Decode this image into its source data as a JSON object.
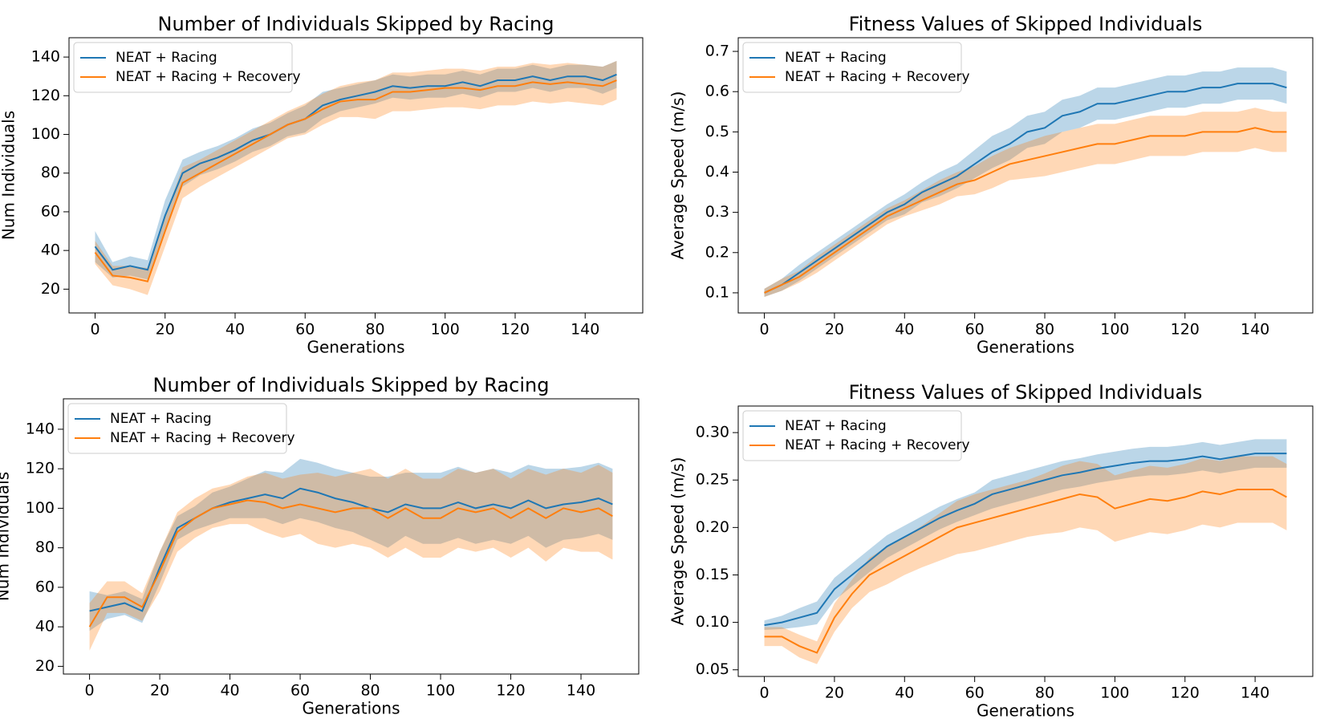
{
  "chart_data": [
    {
      "type": "line",
      "title": "Number of Individuals Skipped by Racing",
      "xlabel": "Generations",
      "ylabel": "Num Individuals",
      "x": [
        0,
        5,
        10,
        15,
        20,
        25,
        30,
        35,
        40,
        45,
        50,
        55,
        60,
        65,
        70,
        75,
        80,
        85,
        90,
        95,
        100,
        105,
        110,
        115,
        120,
        125,
        130,
        135,
        140,
        145,
        149
      ],
      "xlim": [
        -7.45,
        156.45
      ],
      "xticks": [
        0,
        20,
        40,
        60,
        80,
        100,
        120,
        140
      ],
      "ylim": [
        7.7,
        150
      ],
      "yticks": [
        20,
        40,
        60,
        80,
        100,
        120,
        140
      ],
      "legend": "upper left",
      "series": [
        {
          "name": "NEAT + Racing",
          "color": "#1f77b4",
          "values": [
            42,
            30,
            32,
            30,
            58,
            80,
            85,
            88,
            92,
            97,
            100,
            105,
            108,
            115,
            118,
            120,
            122,
            125,
            124,
            125,
            125,
            127,
            125,
            128,
            128,
            130,
            128,
            130,
            130,
            128,
            131
          ],
          "errors": [
            8,
            4,
            5,
            5,
            8,
            7,
            6,
            6,
            6,
            6,
            6,
            6,
            7,
            7,
            6,
            6,
            6,
            6,
            6,
            6,
            6,
            6,
            6,
            6,
            6,
            6,
            6,
            6,
            6,
            7,
            7
          ]
        },
        {
          "name": "NEAT + Racing + Recovery",
          "color": "#ff7f0e",
          "values": [
            39,
            27,
            26,
            24,
            50,
            75,
            80,
            85,
            90,
            95,
            100,
            105,
            108,
            113,
            117,
            118,
            118,
            122,
            122,
            123,
            124,
            124,
            123,
            125,
            125,
            127,
            126,
            127,
            126,
            125,
            128
          ],
          "errors": [
            6,
            5,
            6,
            7,
            8,
            8,
            7,
            7,
            7,
            7,
            7,
            7,
            8,
            8,
            8,
            9,
            10,
            10,
            10,
            10,
            10,
            10,
            10,
            10,
            10,
            10,
            10,
            10,
            10,
            10,
            10
          ]
        }
      ]
    },
    {
      "type": "line",
      "title": "Fitness Values of Skipped Individuals",
      "xlabel": "Generations",
      "ylabel": "Average Speed (m/s)",
      "x": [
        0,
        5,
        10,
        15,
        20,
        25,
        30,
        35,
        40,
        45,
        50,
        55,
        60,
        65,
        70,
        75,
        80,
        85,
        90,
        95,
        100,
        105,
        110,
        115,
        120,
        125,
        130,
        135,
        140,
        145,
        149
      ],
      "xlim": [
        -7.45,
        156.45
      ],
      "xticks": [
        0,
        20,
        40,
        60,
        80,
        100,
        120,
        140
      ],
      "ylim": [
        0.05,
        0.734
      ],
      "yticks": [
        0.1,
        0.2,
        0.3,
        0.4,
        0.5,
        0.6,
        0.7
      ],
      "legend": "upper left",
      "series": [
        {
          "name": "NEAT + Racing",
          "color": "#1f77b4",
          "values": [
            0.1,
            0.12,
            0.15,
            0.18,
            0.21,
            0.24,
            0.27,
            0.3,
            0.32,
            0.35,
            0.37,
            0.39,
            0.42,
            0.45,
            0.47,
            0.5,
            0.51,
            0.54,
            0.55,
            0.57,
            0.57,
            0.58,
            0.59,
            0.6,
            0.6,
            0.61,
            0.61,
            0.62,
            0.62,
            0.62,
            0.61
          ],
          "errors": [
            0.01,
            0.015,
            0.02,
            0.02,
            0.02,
            0.02,
            0.02,
            0.02,
            0.025,
            0.025,
            0.03,
            0.03,
            0.035,
            0.04,
            0.04,
            0.04,
            0.04,
            0.04,
            0.04,
            0.04,
            0.04,
            0.04,
            0.04,
            0.04,
            0.04,
            0.04,
            0.04,
            0.04,
            0.04,
            0.04,
            0.04
          ]
        },
        {
          "name": "NEAT + Racing + Recovery",
          "color": "#ff7f0e",
          "values": [
            0.1,
            0.12,
            0.14,
            0.17,
            0.2,
            0.23,
            0.26,
            0.29,
            0.31,
            0.33,
            0.35,
            0.37,
            0.38,
            0.4,
            0.42,
            0.43,
            0.44,
            0.45,
            0.46,
            0.47,
            0.47,
            0.48,
            0.49,
            0.49,
            0.49,
            0.5,
            0.5,
            0.5,
            0.51,
            0.5,
            0.5
          ],
          "errors": [
            0.01,
            0.015,
            0.015,
            0.02,
            0.02,
            0.02,
            0.02,
            0.02,
            0.02,
            0.025,
            0.03,
            0.03,
            0.035,
            0.04,
            0.04,
            0.045,
            0.05,
            0.05,
            0.05,
            0.05,
            0.05,
            0.05,
            0.05,
            0.05,
            0.05,
            0.05,
            0.05,
            0.05,
            0.05,
            0.05,
            0.05
          ]
        }
      ]
    },
    {
      "type": "line",
      "title": "Number of Individuals Skipped by Racing",
      "xlabel": "Generations",
      "ylabel": "Num Individuals",
      "x": [
        0,
        5,
        10,
        15,
        20,
        25,
        30,
        35,
        40,
        45,
        50,
        55,
        60,
        65,
        70,
        75,
        80,
        85,
        90,
        95,
        100,
        105,
        110,
        115,
        120,
        125,
        130,
        135,
        140,
        145,
        149
      ],
      "xlim": [
        -7.45,
        156.45
      ],
      "xticks": [
        0,
        20,
        40,
        60,
        80,
        100,
        120,
        140
      ],
      "ylim": [
        16.1,
        155.4
      ],
      "yticks": [
        20,
        40,
        60,
        80,
        100,
        120,
        140
      ],
      "legend": "upper left",
      "series": [
        {
          "name": "NEAT + Racing",
          "color": "#1f77b4",
          "values": [
            48,
            50,
            52,
            48,
            70,
            90,
            95,
            100,
            103,
            105,
            107,
            105,
            110,
            108,
            105,
            103,
            100,
            98,
            102,
            100,
            100,
            103,
            100,
            102,
            100,
            104,
            100,
            102,
            103,
            105,
            102
          ],
          "errors": [
            10,
            6,
            6,
            6,
            8,
            6,
            6,
            8,
            8,
            10,
            12,
            13,
            15,
            15,
            15,
            15,
            16,
            18,
            16,
            18,
            18,
            18,
            18,
            18,
            18,
            18,
            20,
            18,
            18,
            18,
            18
          ]
        },
        {
          "name": "NEAT + Racing + Recovery",
          "color": "#ff7f0e",
          "values": [
            40,
            55,
            55,
            50,
            68,
            88,
            95,
            100,
            102,
            104,
            103,
            100,
            102,
            100,
            98,
            100,
            100,
            95,
            100,
            95,
            95,
            100,
            98,
            100,
            95,
            100,
            95,
            100,
            98,
            100,
            96
          ],
          "errors": [
            12,
            8,
            8,
            7,
            10,
            10,
            10,
            10,
            10,
            12,
            15,
            15,
            15,
            18,
            18,
            18,
            20,
            20,
            20,
            20,
            20,
            20,
            20,
            20,
            20,
            20,
            22,
            20,
            20,
            22,
            22
          ]
        }
      ]
    },
    {
      "type": "line",
      "title": "Fitness Values of Skipped Individuals",
      "xlabel": "Generations",
      "ylabel": "Average Speed (m/s)",
      "x": [
        0,
        5,
        10,
        15,
        20,
        25,
        30,
        35,
        40,
        45,
        50,
        55,
        60,
        65,
        70,
        75,
        80,
        85,
        90,
        95,
        100,
        105,
        110,
        115,
        120,
        125,
        130,
        135,
        140,
        145,
        149
      ],
      "xlim": [
        -7.45,
        156.45
      ],
      "xticks": [
        0,
        20,
        40,
        60,
        80,
        100,
        120,
        140
      ],
      "ylim": [
        0.043,
        0.328
      ],
      "yticks": [
        0.05,
        {
          "value": 0.1,
          "label": "0.10"
        },
        0.15,
        {
          "value": 0.2,
          "label": "0.20"
        },
        0.25,
        {
          "value": 0.3,
          "label": "0.30"
        }
      ],
      "legend": "upper left",
      "series": [
        {
          "name": "NEAT + Racing",
          "color": "#1f77b4",
          "values": [
            0.097,
            0.1,
            0.105,
            0.11,
            0.135,
            0.15,
            0.165,
            0.18,
            0.19,
            0.2,
            0.21,
            0.218,
            0.225,
            0.235,
            0.24,
            0.245,
            0.25,
            0.255,
            0.258,
            0.262,
            0.265,
            0.268,
            0.27,
            0.27,
            0.272,
            0.275,
            0.272,
            0.275,
            0.278,
            0.278,
            0.278
          ],
          "errors": [
            0.005,
            0.007,
            0.01,
            0.012,
            0.012,
            0.012,
            0.012,
            0.012,
            0.012,
            0.012,
            0.012,
            0.012,
            0.012,
            0.015,
            0.015,
            0.015,
            0.015,
            0.015,
            0.015,
            0.015,
            0.015,
            0.015,
            0.015,
            0.015,
            0.015,
            0.015,
            0.015,
            0.015,
            0.015,
            0.015,
            0.015
          ]
        },
        {
          "name": "NEAT + Racing + Recovery",
          "color": "#ff7f0e",
          "values": [
            0.085,
            0.085,
            0.075,
            0.068,
            0.105,
            0.13,
            0.15,
            0.16,
            0.17,
            0.18,
            0.19,
            0.2,
            0.205,
            0.21,
            0.215,
            0.22,
            0.225,
            0.23,
            0.235,
            0.232,
            0.22,
            0.225,
            0.23,
            0.228,
            0.232,
            0.238,
            0.235,
            0.24,
            0.24,
            0.24,
            0.232
          ],
          "errors": [
            0.01,
            0.01,
            0.012,
            0.012,
            0.015,
            0.015,
            0.018,
            0.02,
            0.02,
            0.022,
            0.025,
            0.028,
            0.03,
            0.03,
            0.03,
            0.03,
            0.032,
            0.035,
            0.035,
            0.035,
            0.035,
            0.035,
            0.035,
            0.035,
            0.035,
            0.035,
            0.035,
            0.035,
            0.035,
            0.035,
            0.035
          ]
        }
      ]
    }
  ]
}
